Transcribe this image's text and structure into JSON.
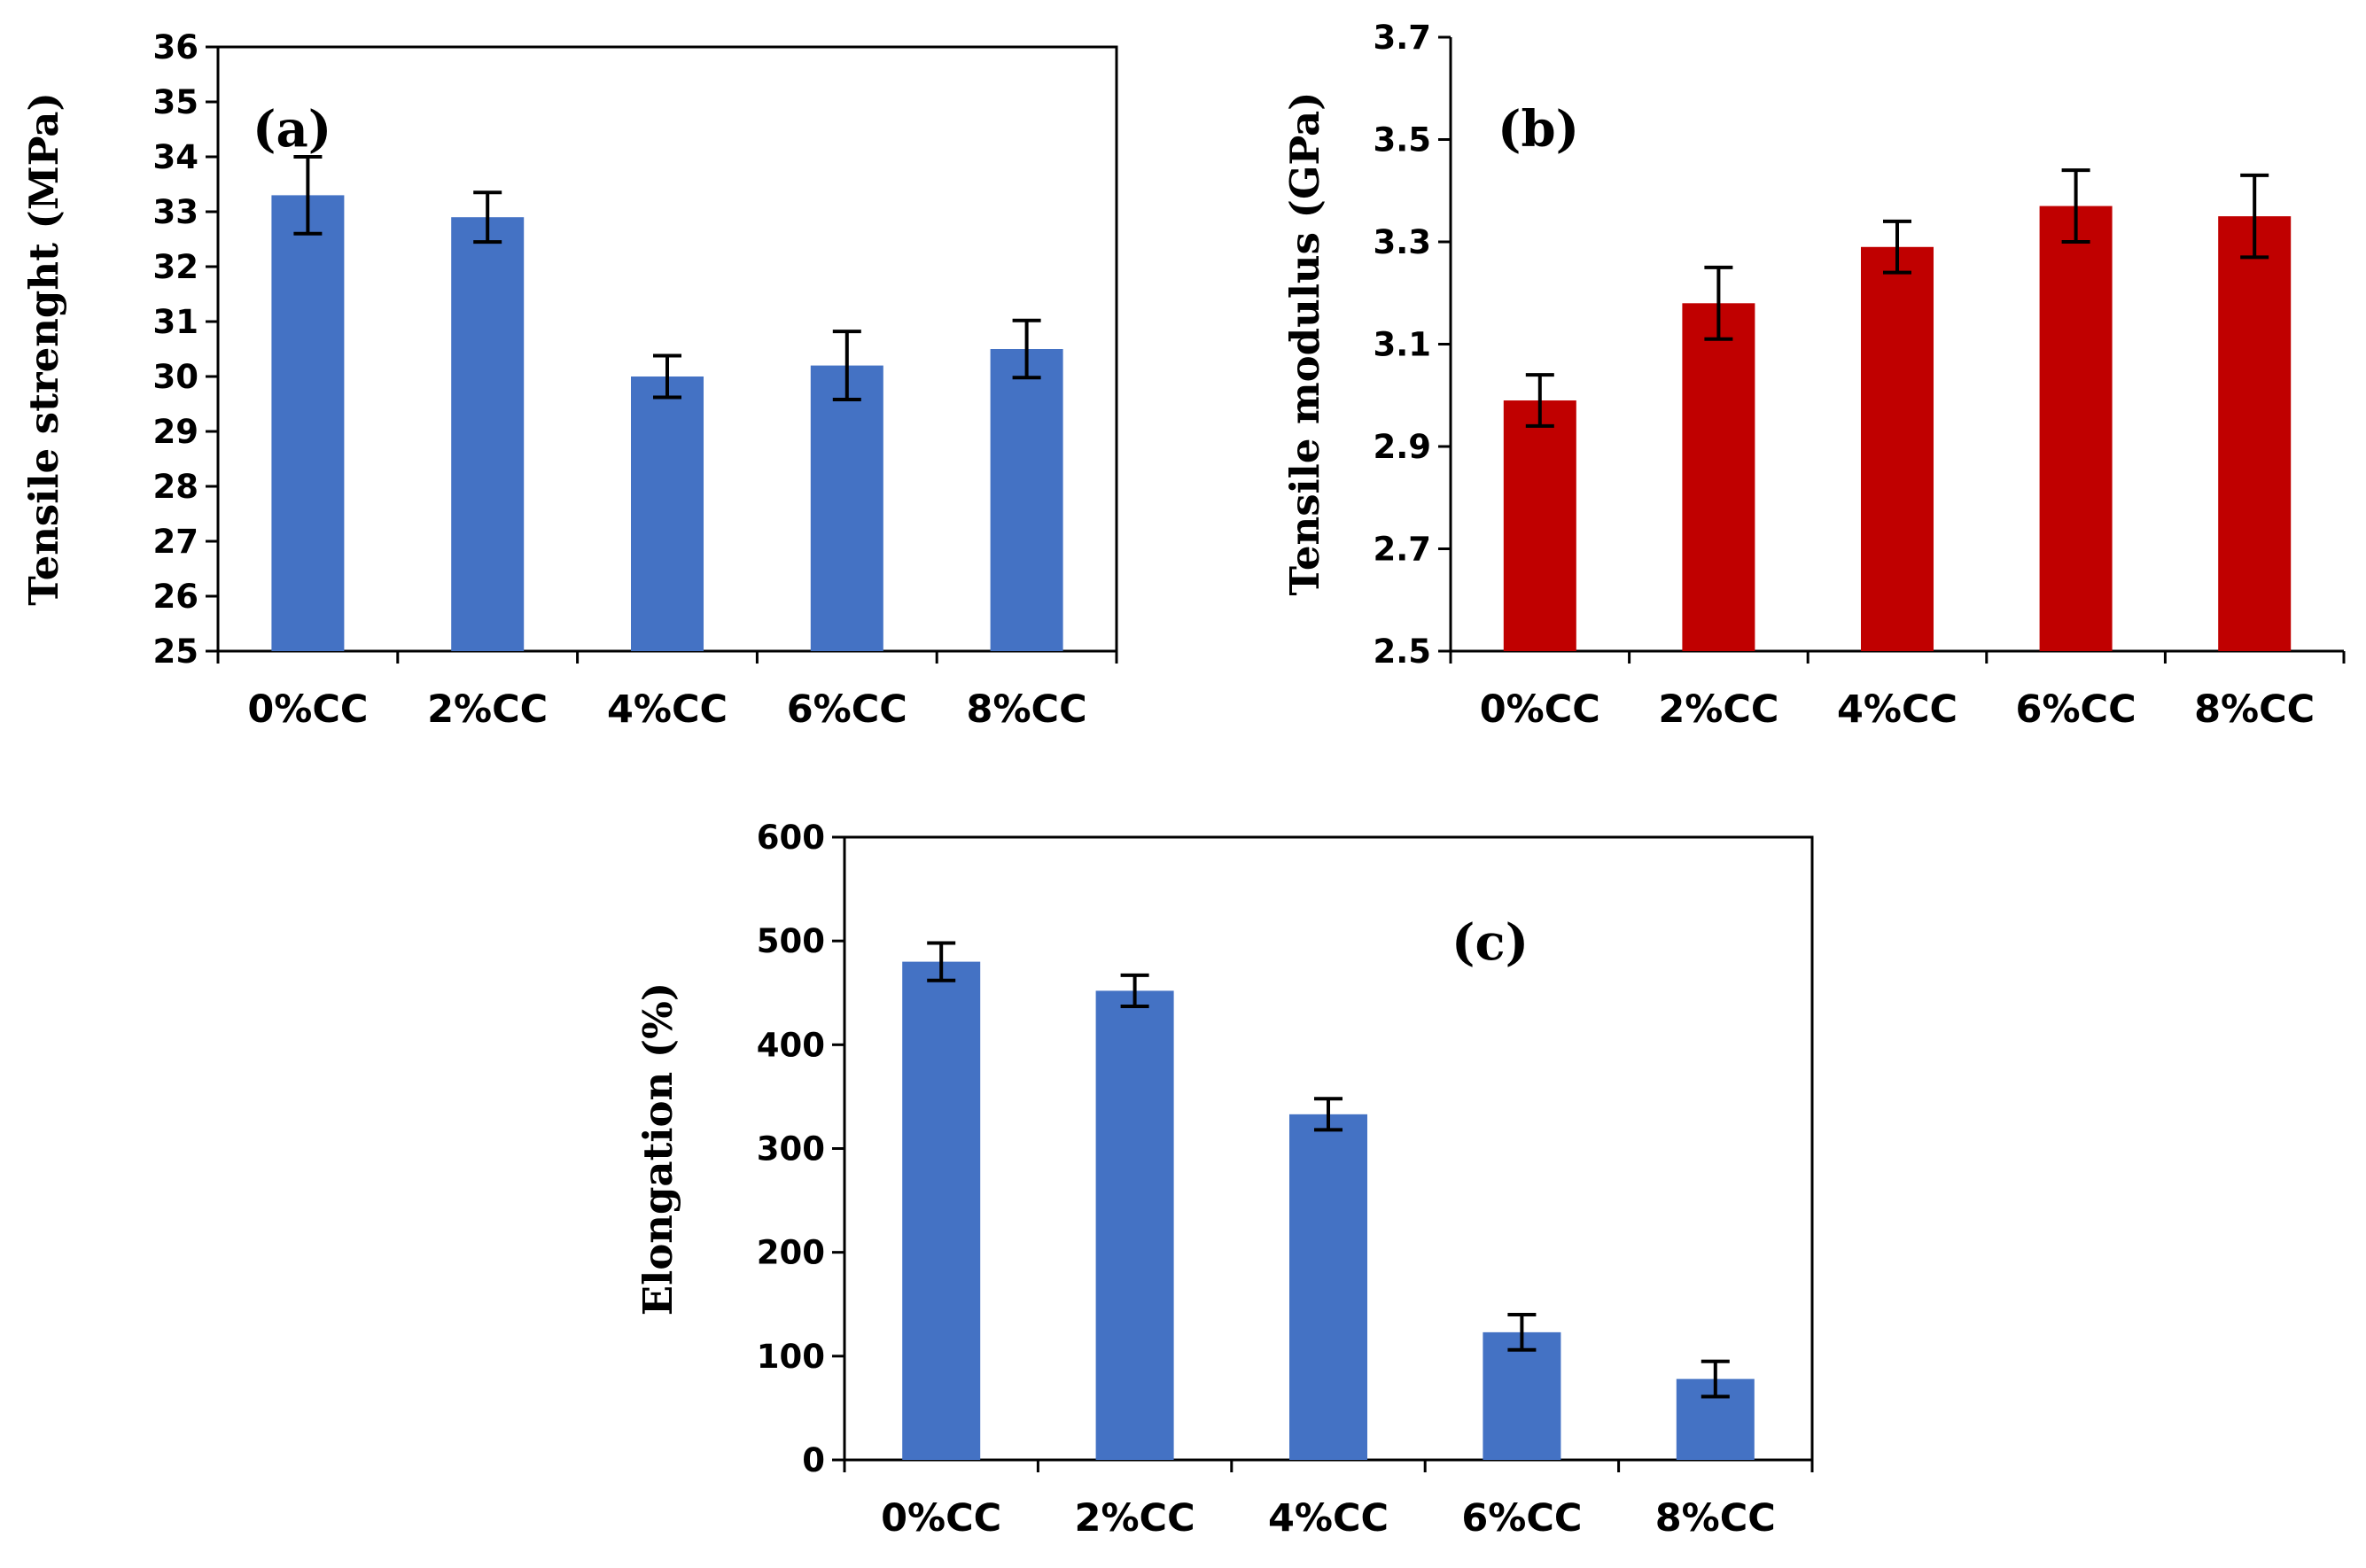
{
  "chart_data": [
    {
      "id": "a",
      "type": "bar",
      "panel_label": "(a)",
      "title": "",
      "xlabel": "",
      "ylabel": "Tensile strenght (MPa)",
      "categories": [
        "0%CC",
        "2%CC",
        "4%CC",
        "6%CC",
        "8%CC"
      ],
      "values": [
        33.3,
        32.9,
        30.0,
        30.2,
        30.5
      ],
      "errors": [
        0.7,
        0.45,
        0.38,
        0.62,
        0.52
      ],
      "ylim": [
        25,
        36
      ],
      "yticks": [
        25,
        26,
        27,
        28,
        29,
        30,
        31,
        32,
        33,
        34,
        35,
        36
      ],
      "ytick_labels": [
        "25",
        "26",
        "27",
        "28",
        "29",
        "30",
        "31",
        "32",
        "33",
        "34",
        "35",
        "36"
      ],
      "color": "#4472C4",
      "grid": false,
      "frame": "box"
    },
    {
      "id": "b",
      "type": "bar",
      "panel_label": "(b)",
      "title": "",
      "xlabel": "",
      "ylabel": "Tensile modulus (GPa)",
      "categories": [
        "0%CC",
        "2%CC",
        "4%CC",
        "6%CC",
        "8%CC"
      ],
      "values": [
        2.99,
        3.18,
        3.29,
        3.37,
        3.35
      ],
      "errors": [
        0.05,
        0.07,
        0.05,
        0.07,
        0.08
      ],
      "ylim": [
        2.5,
        3.7
      ],
      "yticks": [
        2.5,
        2.7,
        2.9,
        3.1,
        3.3,
        3.5,
        3.7
      ],
      "ytick_labels": [
        "2.5",
        "2.7",
        "2.9",
        "3.1",
        "3.3",
        "3.5",
        "3.7"
      ],
      "color": "#C00000",
      "grid": false,
      "frame": "axes"
    },
    {
      "id": "c",
      "type": "bar",
      "panel_label": "(c)",
      "title": "",
      "xlabel": "",
      "ylabel": "Elongation (%)",
      "categories": [
        "0%CC",
        "2%CC",
        "4%CC",
        "6%CC",
        "8%CC"
      ],
      "values": [
        480,
        452,
        333,
        123,
        78
      ],
      "errors": [
        18,
        15,
        15,
        17,
        17
      ],
      "ylim": [
        0,
        600
      ],
      "yticks": [
        0,
        100,
        200,
        300,
        400,
        500,
        600
      ],
      "ytick_labels": [
        "0",
        "100",
        "200",
        "300",
        "400",
        "500",
        "600"
      ],
      "color": "#4472C4",
      "grid": false,
      "frame": "box"
    }
  ]
}
